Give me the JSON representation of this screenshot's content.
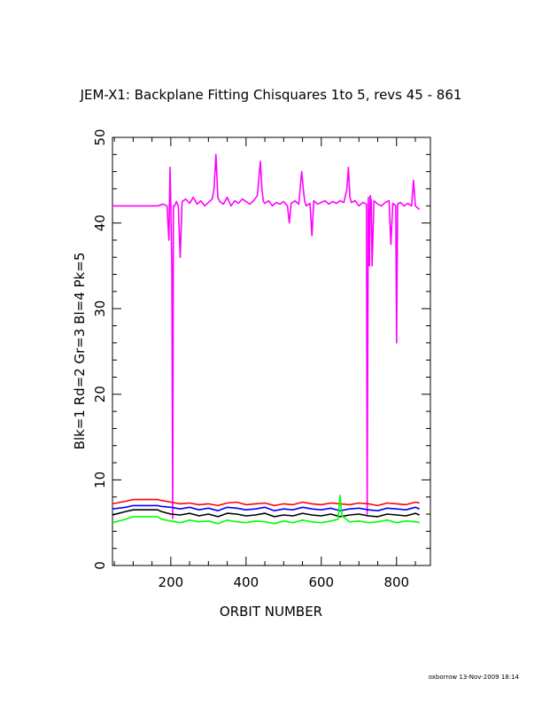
{
  "chart_data": {
    "type": "line",
    "title": "JEM-X1: Backplane Fitting Chisquares 1to 5, revs 45 - 861",
    "xlabel": "ORBIT NUMBER",
    "ylabel": "Blk=1 Rd=2 Gr=3 Bl=4 Pk=5",
    "xlim": [
      45,
      890
    ],
    "ylim": [
      0,
      50
    ],
    "xticks": [
      200,
      400,
      600,
      800
    ],
    "yticks": [
      0,
      10,
      20,
      30,
      40,
      50
    ],
    "grid": false,
    "series": [
      {
        "color": "#ff00ff",
        "x": [
          45,
          165,
          180,
          190,
          195,
          198,
          200,
          203,
          205,
          207,
          210,
          215,
          220,
          225,
          230,
          240,
          250,
          260,
          270,
          280,
          290,
          300,
          310,
          315,
          320,
          325,
          330,
          340,
          350,
          360,
          370,
          380,
          390,
          400,
          410,
          420,
          430,
          438,
          442,
          446,
          450,
          460,
          470,
          480,
          490,
          500,
          510,
          515,
          520,
          530,
          540,
          548,
          552,
          556,
          560,
          570,
          575,
          580,
          590,
          600,
          610,
          620,
          630,
          640,
          650,
          660,
          668,
          672,
          676,
          680,
          690,
          700,
          710,
          720,
          722,
          725,
          728,
          730,
          733,
          735,
          740,
          750,
          760,
          770,
          780,
          785,
          790,
          798,
          800,
          803,
          810,
          820,
          830,
          840,
          845,
          850,
          855,
          861
        ],
        "y": [
          42.0,
          42.0,
          42.2,
          42.0,
          38.0,
          46.5,
          42.0,
          34.5,
          5.5,
          42.0,
          42.0,
          42.5,
          42.0,
          36.0,
          42.5,
          42.8,
          42.3,
          43.0,
          42.2,
          42.6,
          42.0,
          42.4,
          42.8,
          44.0,
          48.0,
          43.0,
          42.5,
          42.2,
          43.0,
          42.0,
          42.6,
          42.3,
          42.8,
          42.5,
          42.2,
          42.6,
          43.2,
          47.2,
          44.0,
          42.5,
          42.3,
          42.6,
          42.0,
          42.4,
          42.2,
          42.5,
          42.0,
          40.0,
          42.3,
          42.6,
          42.2,
          46.0,
          44.0,
          42.5,
          42.0,
          42.3,
          38.5,
          42.6,
          42.2,
          42.4,
          42.6,
          42.2,
          42.5,
          42.3,
          42.6,
          42.4,
          44.0,
          46.5,
          43.0,
          42.4,
          42.6,
          42.0,
          42.4,
          42.2,
          6.0,
          43.0,
          35.0,
          43.2,
          42.5,
          35.0,
          42.6,
          42.2,
          42.0,
          42.4,
          42.6,
          37.5,
          42.3,
          42.0,
          26.0,
          42.2,
          42.4,
          42.0,
          42.3,
          42.0,
          45.0,
          42.0,
          41.8,
          41.6
        ]
      },
      {
        "color": "#ff0000",
        "x": [
          45,
          80,
          100,
          165,
          175,
          200,
          225,
          250,
          275,
          300,
          325,
          350,
          375,
          400,
          425,
          450,
          475,
          500,
          525,
          550,
          575,
          600,
          625,
          650,
          675,
          700,
          725,
          750,
          775,
          800,
          825,
          850,
          861
        ],
        "y": [
          7.2,
          7.5,
          7.7,
          7.7,
          7.6,
          7.4,
          7.2,
          7.3,
          7.1,
          7.2,
          7.0,
          7.3,
          7.4,
          7.1,
          7.2,
          7.3,
          7.0,
          7.2,
          7.1,
          7.4,
          7.2,
          7.1,
          7.3,
          7.2,
          7.1,
          7.3,
          7.2,
          7.0,
          7.3,
          7.2,
          7.1,
          7.4,
          7.3
        ]
      },
      {
        "color": "#0000ff",
        "x": [
          45,
          80,
          100,
          165,
          175,
          200,
          225,
          250,
          275,
          300,
          325,
          350,
          375,
          400,
          425,
          450,
          475,
          500,
          525,
          550,
          575,
          600,
          625,
          650,
          675,
          700,
          725,
          750,
          775,
          800,
          825,
          850,
          861
        ],
        "y": [
          6.6,
          6.8,
          7.0,
          7.0,
          6.9,
          6.8,
          6.6,
          6.8,
          6.5,
          6.7,
          6.4,
          6.8,
          6.7,
          6.5,
          6.6,
          6.8,
          6.4,
          6.6,
          6.5,
          6.8,
          6.6,
          6.5,
          6.7,
          6.4,
          6.6,
          6.7,
          6.5,
          6.4,
          6.7,
          6.6,
          6.5,
          6.8,
          6.6
        ]
      },
      {
        "color": "#000000",
        "x": [
          45,
          80,
          100,
          165,
          175,
          200,
          225,
          250,
          275,
          300,
          325,
          350,
          375,
          400,
          425,
          450,
          475,
          500,
          525,
          550,
          575,
          600,
          625,
          650,
          675,
          700,
          725,
          750,
          775,
          800,
          825,
          850,
          861
        ],
        "y": [
          5.9,
          6.3,
          6.5,
          6.5,
          6.3,
          6.0,
          5.9,
          6.1,
          5.8,
          6.0,
          5.7,
          6.1,
          6.0,
          5.8,
          5.9,
          6.1,
          5.7,
          5.9,
          5.8,
          6.1,
          5.9,
          5.8,
          6.0,
          5.7,
          5.9,
          6.0,
          5.8,
          5.7,
          6.0,
          5.9,
          5.8,
          6.1,
          5.9
        ]
      },
      {
        "color": "#00ff00",
        "x": [
          45,
          80,
          100,
          165,
          175,
          200,
          225,
          250,
          275,
          300,
          325,
          350,
          375,
          400,
          425,
          450,
          475,
          500,
          525,
          550,
          575,
          600,
          625,
          645,
          650,
          655,
          675,
          700,
          725,
          750,
          775,
          800,
          825,
          850,
          861
        ],
        "y": [
          5.0,
          5.4,
          5.7,
          5.7,
          5.4,
          5.2,
          5.0,
          5.3,
          5.1,
          5.2,
          4.9,
          5.3,
          5.1,
          5.0,
          5.2,
          5.1,
          4.9,
          5.2,
          5.0,
          5.3,
          5.1,
          5.0,
          5.2,
          5.4,
          8.2,
          5.8,
          5.1,
          5.2,
          5.0,
          5.1,
          5.3,
          5.0,
          5.2,
          5.1,
          5.0
        ]
      }
    ]
  },
  "footer": {
    "credit": "oxborrow 13-Nov-2009 18:14"
  }
}
